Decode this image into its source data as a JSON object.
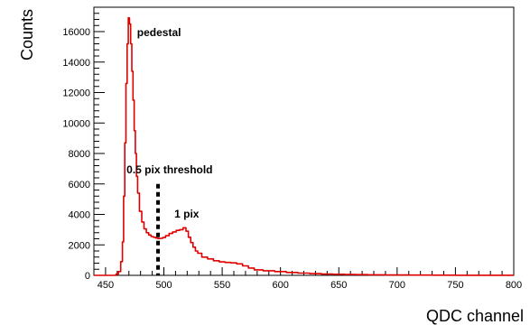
{
  "chart_data": {
    "type": "line",
    "title": "",
    "xlabel": "QDC channel",
    "ylabel": "Counts",
    "xlim": [
      440,
      800
    ],
    "ylim": [
      0,
      17600
    ],
    "grid": false,
    "legend": "none",
    "x_ticks": [
      "450",
      "500",
      "550",
      "600",
      "650",
      "700",
      "750",
      "800"
    ],
    "x_tick_values": [
      450,
      500,
      550,
      600,
      650,
      700,
      750,
      800
    ],
    "y_ticks": [
      "0",
      "2000",
      "4000",
      "6000",
      "8000",
      "10000",
      "12000",
      "14000",
      "16000"
    ],
    "y_tick_values": [
      0,
      2000,
      4000,
      6000,
      8000,
      10000,
      12000,
      14000,
      16000
    ],
    "line_color": "#e00000",
    "series": [
      {
        "x": [
          440,
          458,
          460,
          462,
          464,
          465,
          466,
          467,
          468,
          469,
          470,
          471,
          472,
          473,
          474,
          475,
          476,
          477,
          478,
          480,
          482,
          484,
          486,
          488,
          490,
          492,
          494,
          496,
          498,
          500,
          503,
          506,
          509,
          512,
          515,
          518,
          520,
          522,
          524,
          526,
          528,
          530,
          535,
          540,
          545,
          550,
          555,
          560,
          565,
          570,
          575,
          580,
          590,
          600,
          610,
          620,
          630,
          640,
          650,
          660,
          670,
          680,
          700,
          720,
          740,
          760,
          780,
          800
        ],
        "y": [
          0,
          0,
          80,
          250,
          900,
          2200,
          5200,
          8700,
          12600,
          15200,
          16900,
          16500,
          15200,
          13400,
          11500,
          9500,
          8000,
          6500,
          5400,
          4200,
          3500,
          3050,
          2800,
          2650,
          2550,
          2500,
          2450,
          2420,
          2430,
          2480,
          2600,
          2750,
          2850,
          2950,
          3000,
          3120,
          2900,
          2500,
          2150,
          1850,
          1600,
          1450,
          1200,
          1080,
          960,
          880,
          850,
          820,
          750,
          620,
          480,
          360,
          300,
          250,
          190,
          150,
          110,
          85,
          70,
          55,
          45,
          35,
          25,
          18,
          12,
          8,
          5,
          3
        ]
      }
    ],
    "annotations": [
      {
        "text": "pedestal",
        "x": 477,
        "y": 15700
      },
      {
        "text": "0.5 pix threshold",
        "x": 468,
        "y": 6700
      },
      {
        "text": "1 pix",
        "x": 509,
        "y": 3800
      }
    ],
    "threshold_line": {
      "x": 495,
      "y_top": 6000,
      "y_bottom": 0
    }
  }
}
